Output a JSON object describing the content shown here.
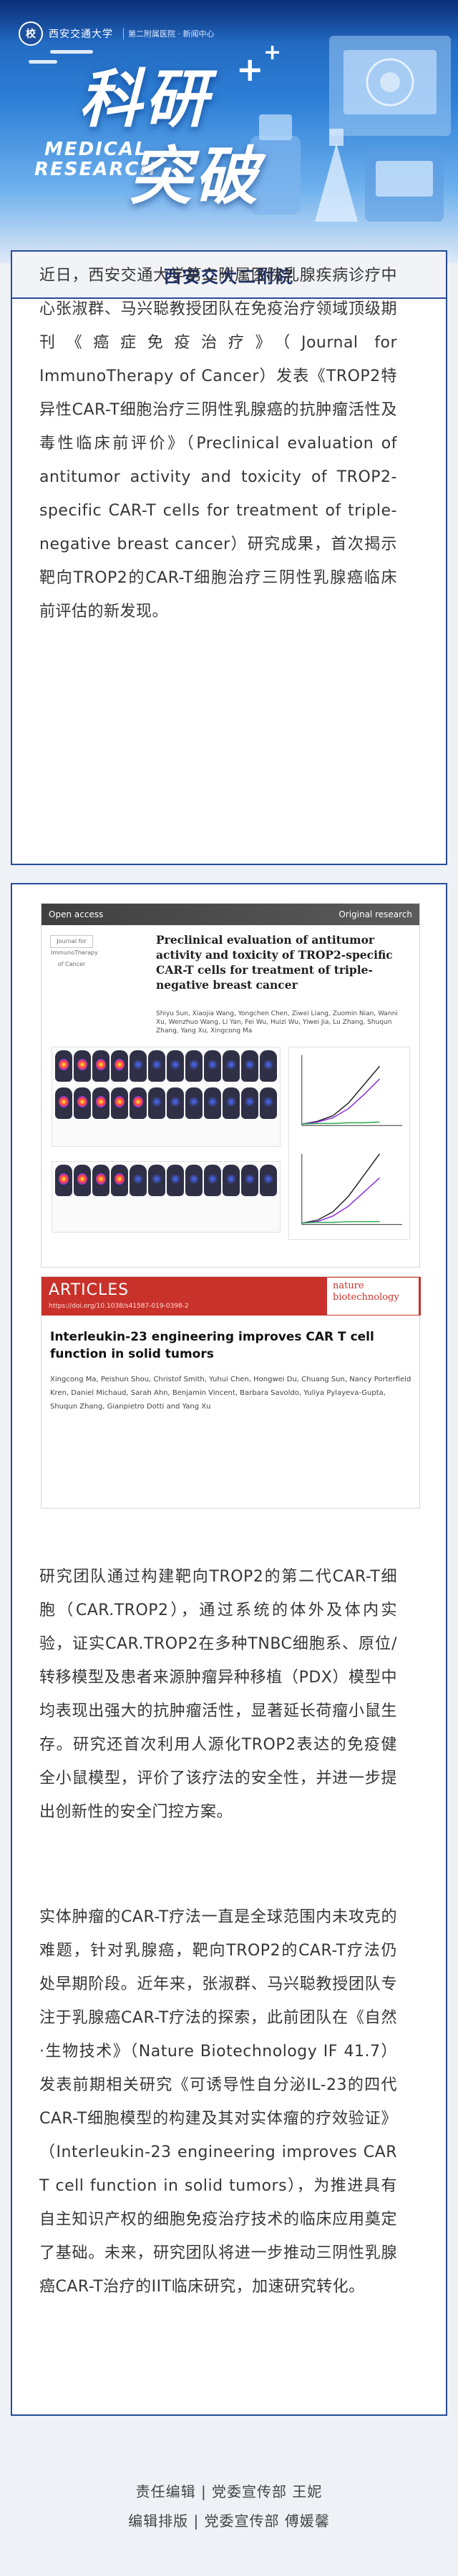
{
  "header": {
    "logo_text": "西安交通大学",
    "logo_sub": "第二附属医院 · 新闻中心",
    "title_line1": "科研",
    "title_line2": "突破",
    "plus": "+",
    "en_line1": "MEDICAL",
    "en_line2": "RESEARCH",
    "accent_color": "#1b5bb3"
  },
  "section": {
    "title": "西安交大二附院",
    "frame_color": "#264d9a"
  },
  "article": {
    "paragraph1": "近日，西安交通大学第二附属医院乳腺疾病诊疗中心张淑群、马兴聪教授团队在免疫治疗领域顶级期刊《癌症免疫治疗》（Journal for ImmunoTherapy of Cancer）发表《TROP2特异性CAR-T细胞治疗三阴性乳腺癌的抗肿瘤活性及毒性临床前评价》（Preclinical evaluation of antitumor activity and toxicity of TROP2-specific CAR-T cells for treatment of triple-negative breast cancer）研究成果，首次揭示靶向TROP2的CAR-T细胞治疗三阴性乳腺癌临床前评估的新发现。",
    "paragraph2": "研究团队通过构建靶向TROP2的第二代CAR-T细胞（CAR.TROP2），通过系统的体外及体内实验，证实CAR.TROP2在多种TNBC细胞系、原位/转移模型及患者来源肿瘤异种移植（PDX）模型中均表现出强大的抗肿瘤活性，显著延长荷瘤小鼠生存。研究还首次利用人源化TROP2表达的免疫健全小鼠模型，评价了该疗法的安全性，并进一步提出创新性的安全门控方案。",
    "paragraph3": "实体肿瘤的CAR-T疗法一直是全球范围内未攻克的难题，针对乳腺癌，靶向TROP2的CAR-T疗法仍处早期阶段。近年来，张淑群、马兴聪教授团队专注于乳腺癌CAR-T疗法的探索，此前团队在《自然·生物技术》（Nature Biotechnology IF 41.7）发表前期相关研究《可诱导性自分泌IL-23的四代CAR-T细胞模型的构建及其对实体瘤的疗效验证》（Interleukin-23 engineering improves CAR T cell function in solid tumors），为推进具有自主知识产权的细胞免疫治疗技术的临床应用奠定了基础。未来，研究团队将进一步推动三阴性乳腺癌CAR-T治疗的IIT临床研究，加速研究转化。"
  },
  "paper1": {
    "open_access": "Open access",
    "original_research": "Original research",
    "journal_logo": "Journal for ImmunoTherapy of Cancer",
    "title": "Preclinical evaluation of antitumor activity and toxicity of TROP2-specific CAR-T cells for treatment of triple-negative breast cancer",
    "authors": "Shiyu Sun, Xiaojia Wang, Yongchen Chen, Ziwei Liang, Zuomin Nian, Wanni Xu, Wenzhuo Wang, Li Yan, Fei Wu, Huizi Wu, Yiwei Jia, Lu Zhang, Shuqun Zhang, Yang Xu, Xingcong Ma"
  },
  "paper2": {
    "banner": "ARTICLES",
    "doi": "https://doi.org/10.1038/s41587-019-0398-2",
    "journal": "nature biotechnology",
    "title": "Interleukin-23 engineering improves CAR T cell function in solid tumors",
    "authors": "Xingcong Ma, Peishun Shou, Christof Smith, Yuhui Chen, Hongwei Du, Chuang Sun, Nancy Porterfield Kren, Daniel Michaud, Sarah Ahn, Benjamin Vincent, Barbara Savoldo, Yuliya Pylayeva-Gupta, Shuqun Zhang, Gianpietro Dotti and Yang Xu"
  },
  "footer": {
    "editor": "责任编辑 | 党委宣传部 王妮",
    "layout": "编辑排版 | 党委宣传部 傅媛馨"
  }
}
